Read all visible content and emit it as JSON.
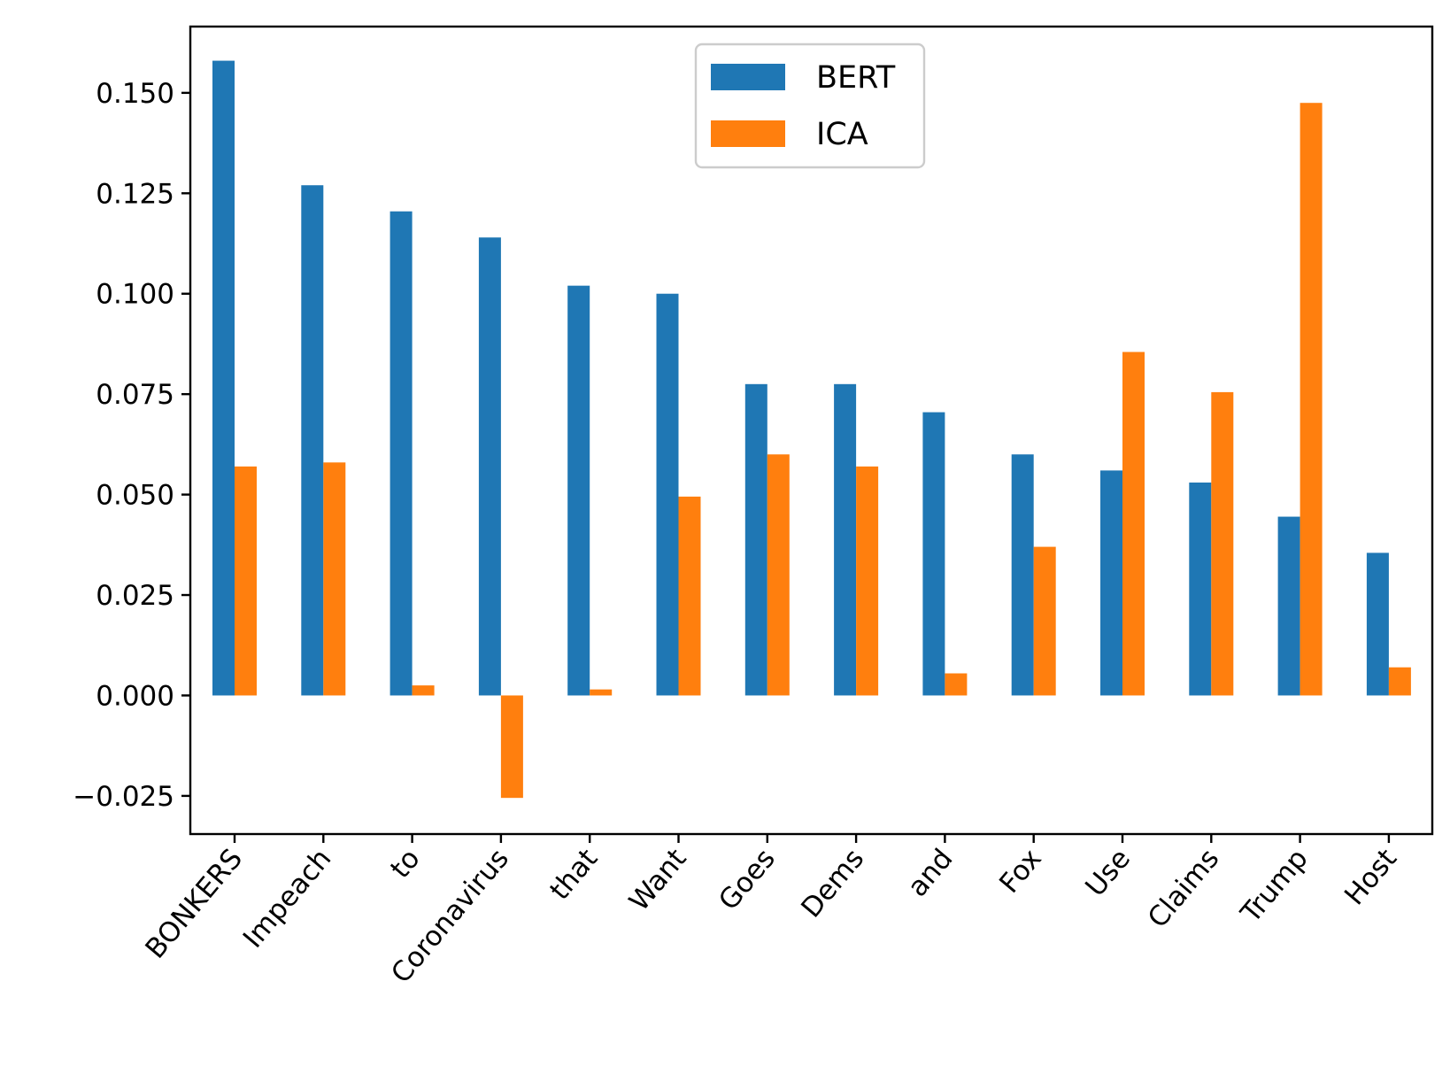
{
  "chart_data": {
    "type": "bar",
    "title": "",
    "xlabel": "",
    "ylabel": "",
    "categories": [
      "BONKERS",
      "Impeach",
      "to",
      "Coronavirus",
      "that",
      "Want",
      "Goes",
      "Dems",
      "and",
      "Fox",
      "Use",
      "Claims",
      "Trump",
      "Host"
    ],
    "series": [
      {
        "name": "BERT",
        "color": "#1f77b4",
        "values": [
          0.158,
          0.127,
          0.1205,
          0.114,
          0.102,
          0.1,
          0.0775,
          0.0775,
          0.0705,
          0.06,
          0.056,
          0.053,
          0.0445,
          0.0355
        ]
      },
      {
        "name": "ICA",
        "color": "#ff7f0e",
        "values": [
          0.057,
          0.058,
          0.0025,
          -0.0255,
          0.0015,
          0.0495,
          0.06,
          0.057,
          0.0055,
          0.037,
          0.0855,
          0.0755,
          0.1475,
          0.007
        ]
      }
    ],
    "ylim": [
      -0.0345,
      0.1665
    ],
    "yticks": [
      "0.150",
      "0.125",
      "0.100",
      "0.075",
      "0.050",
      "0.025",
      "0.000",
      "−0.025"
    ],
    "ytick_values": [
      0.15,
      0.125,
      0.1,
      0.075,
      0.05,
      0.025,
      0.0,
      -0.025
    ],
    "grid": false,
    "legend": {
      "position": "top-center",
      "entries": [
        "BERT",
        "ICA"
      ]
    }
  }
}
